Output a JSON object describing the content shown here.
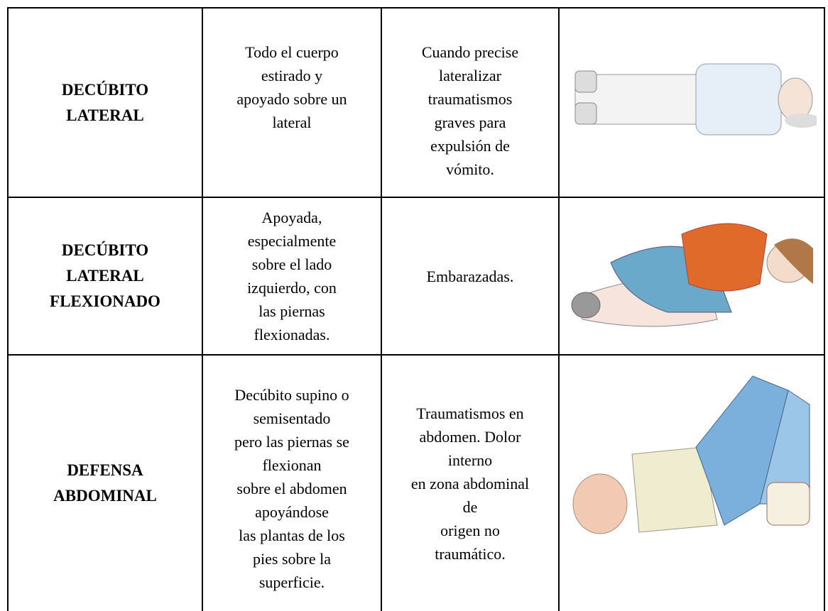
{
  "table": {
    "rows": [
      [
        [
          "DECÚBITO",
          "LATERAL"
        ],
        [
          "Todo el cuerpo",
          "estirado y",
          "apoyado sobre un",
          "lateral"
        ],
        [
          "Cuando precise",
          "lateralizar",
          "traumatismos",
          "graves para",
          "expulsión de",
          "vómito."
        ]
      ],
      [
        [
          "DECÚBITO",
          "LATERAL",
          "FLEXIONADO"
        ],
        [
          "Apoyada,",
          "especialmente",
          "sobre el lado",
          "izquierdo, con",
          "las piernas",
          "flexionadas."
        ],
        [
          "Embarazadas."
        ]
      ],
      [
        [
          "DEFENSA",
          "ABDOMINAL"
        ],
        [
          "Decúbito supino o",
          "semisentado",
          "pero las piernas se",
          "flexionan",
          "sobre el abdomen",
          "apoyándose",
          "las plantas de los",
          "pies sobre la",
          "superficie."
        ],
        [
          "Traumatismos en",
          "abdomen. Dolor",
          "interno",
          "en zona abdominal",
          "de",
          "origen no",
          "traumático."
        ]
      ]
    ]
  }
}
